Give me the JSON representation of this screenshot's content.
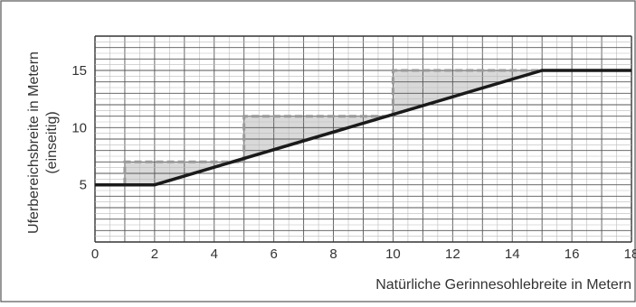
{
  "chart_data": {
    "type": "line",
    "title": "",
    "xlabel": "Natürliche Gerinnesohlebreite in Metern",
    "ylabel_lines": [
      "Uferbereichsbreite in Metern",
      "(einseitig)"
    ],
    "xlim": [
      0,
      18
    ],
    "ylim": [
      0,
      18
    ],
    "x_ticks": [
      0,
      2,
      4,
      6,
      8,
      10,
      12,
      14,
      16,
      18
    ],
    "y_ticks": [
      5,
      10,
      15
    ],
    "grid": true,
    "grid_step": 0.5,
    "series": [
      {
        "style": "solid",
        "color": "#1a1a1a",
        "points": [
          [
            0,
            5
          ],
          [
            2,
            5
          ],
          [
            15,
            15
          ],
          [
            18,
            15
          ]
        ]
      },
      {
        "style": "dashed",
        "color": "#9a9a9a",
        "points": [
          [
            1,
            5
          ],
          [
            1,
            7
          ],
          [
            5,
            7
          ],
          [
            5,
            11
          ],
          [
            10,
            11
          ],
          [
            10,
            15
          ],
          [
            15,
            15
          ]
        ]
      }
    ],
    "band": {
      "color": "#d9d9d9",
      "upper": [
        [
          1,
          7
        ],
        [
          5,
          7
        ],
        [
          5,
          11
        ],
        [
          10,
          11
        ],
        [
          10,
          15
        ],
        [
          15,
          15
        ]
      ],
      "lower": [
        [
          1,
          5
        ],
        [
          2,
          5
        ],
        [
          15,
          15
        ]
      ]
    },
    "legend": "none"
  }
}
